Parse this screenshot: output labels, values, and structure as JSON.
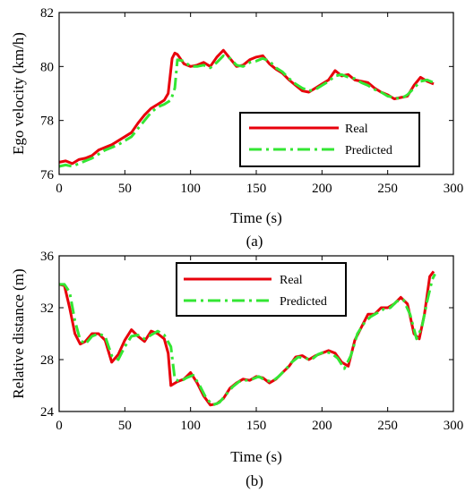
{
  "colors": {
    "real": "#e8000b",
    "predicted": "#33e633",
    "axis": "#000000",
    "background": "#ffffff"
  },
  "chart_data": [
    {
      "type": "line",
      "panel_label": "(a)",
      "xlabel": "Time (s)",
      "ylabel": "Ego velocity (km/h)",
      "xlim": [
        0,
        300
      ],
      "ylim": [
        76,
        82
      ],
      "xticks": [
        0,
        50,
        100,
        150,
        200,
        250,
        300
      ],
      "yticks": [
        76,
        78,
        80,
        82
      ],
      "grid": false,
      "legend_position": "bottom-right",
      "series": [
        {
          "name": "Real",
          "style": "solid",
          "points": [
            [
              0,
              76.45
            ],
            [
              5,
              76.5
            ],
            [
              10,
              76.4
            ],
            [
              15,
              76.55
            ],
            [
              20,
              76.6
            ],
            [
              25,
              76.7
            ],
            [
              30,
              76.9
            ],
            [
              35,
              77.0
            ],
            [
              40,
              77.1
            ],
            [
              45,
              77.25
            ],
            [
              50,
              77.4
            ],
            [
              55,
              77.55
            ],
            [
              60,
              77.9
            ],
            [
              65,
              78.2
            ],
            [
              70,
              78.45
            ],
            [
              75,
              78.6
            ],
            [
              80,
              78.75
            ],
            [
              83,
              79.0
            ],
            [
              86,
              80.3
            ],
            [
              88,
              80.5
            ],
            [
              90,
              80.45
            ],
            [
              95,
              80.1
            ],
            [
              100,
              80.0
            ],
            [
              105,
              80.05
            ],
            [
              110,
              80.15
            ],
            [
              115,
              80.0
            ],
            [
              120,
              80.35
            ],
            [
              125,
              80.6
            ],
            [
              130,
              80.3
            ],
            [
              135,
              80.0
            ],
            [
              140,
              80.05
            ],
            [
              145,
              80.25
            ],
            [
              150,
              80.35
            ],
            [
              155,
              80.4
            ],
            [
              160,
              80.1
            ],
            [
              165,
              79.9
            ],
            [
              170,
              79.75
            ],
            [
              175,
              79.5
            ],
            [
              180,
              79.3
            ],
            [
              185,
              79.1
            ],
            [
              190,
              79.05
            ],
            [
              195,
              79.2
            ],
            [
              200,
              79.35
            ],
            [
              205,
              79.5
            ],
            [
              210,
              79.85
            ],
            [
              215,
              79.65
            ],
            [
              220,
              79.7
            ],
            [
              225,
              79.5
            ],
            [
              230,
              79.45
            ],
            [
              235,
              79.4
            ],
            [
              240,
              79.2
            ],
            [
              245,
              79.05
            ],
            [
              250,
              78.95
            ],
            [
              255,
              78.8
            ],
            [
              260,
              78.85
            ],
            [
              265,
              78.9
            ],
            [
              270,
              79.3
            ],
            [
              275,
              79.6
            ],
            [
              280,
              79.45
            ],
            [
              285,
              79.35
            ]
          ]
        },
        {
          "name": "Predicted",
          "style": "dash-dot",
          "points": [
            [
              0,
              76.3
            ],
            [
              5,
              76.35
            ],
            [
              10,
              76.3
            ],
            [
              15,
              76.4
            ],
            [
              20,
              76.5
            ],
            [
              25,
              76.6
            ],
            [
              30,
              76.75
            ],
            [
              35,
              76.9
            ],
            [
              40,
              77.0
            ],
            [
              45,
              77.1
            ],
            [
              50,
              77.25
            ],
            [
              55,
              77.4
            ],
            [
              60,
              77.7
            ],
            [
              65,
              78.0
            ],
            [
              70,
              78.3
            ],
            [
              75,
              78.5
            ],
            [
              80,
              78.6
            ],
            [
              85,
              78.75
            ],
            [
              88,
              79.2
            ],
            [
              90,
              80.25
            ],
            [
              95,
              80.2
            ],
            [
              100,
              80.0
            ],
            [
              105,
              80.0
            ],
            [
              110,
              80.05
            ],
            [
              115,
              79.95
            ],
            [
              120,
              80.15
            ],
            [
              125,
              80.4
            ],
            [
              130,
              80.3
            ],
            [
              135,
              80.05
            ],
            [
              140,
              80.0
            ],
            [
              145,
              80.15
            ],
            [
              150,
              80.2
            ],
            [
              155,
              80.3
            ],
            [
              160,
              80.2
            ],
            [
              165,
              79.95
            ],
            [
              170,
              79.8
            ],
            [
              175,
              79.55
            ],
            [
              180,
              79.35
            ],
            [
              185,
              79.2
            ],
            [
              190,
              79.1
            ],
            [
              195,
              79.15
            ],
            [
              200,
              79.3
            ],
            [
              205,
              79.45
            ],
            [
              210,
              79.65
            ],
            [
              215,
              79.7
            ],
            [
              220,
              79.6
            ],
            [
              225,
              79.55
            ],
            [
              230,
              79.4
            ],
            [
              235,
              79.3
            ],
            [
              240,
              79.15
            ],
            [
              245,
              79.05
            ],
            [
              250,
              78.9
            ],
            [
              255,
              78.85
            ],
            [
              260,
              78.8
            ],
            [
              265,
              78.95
            ],
            [
              270,
              79.2
            ],
            [
              275,
              79.45
            ],
            [
              280,
              79.5
            ],
            [
              285,
              79.4
            ]
          ]
        }
      ]
    },
    {
      "type": "line",
      "panel_label": "(b)",
      "xlabel": "Time (s)",
      "ylabel": "Relative distance (m)",
      "xlim": [
        0,
        300
      ],
      "ylim": [
        24,
        36
      ],
      "xticks": [
        0,
        50,
        100,
        150,
        200,
        250,
        300
      ],
      "yticks": [
        24,
        28,
        32,
        36
      ],
      "grid": false,
      "legend_position": "top-center",
      "series": [
        {
          "name": "Real",
          "style": "solid",
          "points": [
            [
              0,
              33.8
            ],
            [
              4,
              33.7
            ],
            [
              8,
              32.0
            ],
            [
              12,
              30.0
            ],
            [
              16,
              29.2
            ],
            [
              20,
              29.4
            ],
            [
              25,
              30.0
            ],
            [
              30,
              30.0
            ],
            [
              35,
              29.5
            ],
            [
              40,
              27.8
            ],
            [
              45,
              28.4
            ],
            [
              50,
              29.5
            ],
            [
              55,
              30.3
            ],
            [
              60,
              29.8
            ],
            [
              65,
              29.4
            ],
            [
              70,
              30.2
            ],
            [
              75,
              30.0
            ],
            [
              80,
              29.6
            ],
            [
              83,
              28.5
            ],
            [
              85,
              26.0
            ],
            [
              90,
              26.3
            ],
            [
              95,
              26.5
            ],
            [
              100,
              27.0
            ],
            [
              105,
              26.2
            ],
            [
              110,
              25.2
            ],
            [
              115,
              24.5
            ],
            [
              120,
              24.6
            ],
            [
              125,
              25.0
            ],
            [
              130,
              25.8
            ],
            [
              135,
              26.2
            ],
            [
              140,
              26.5
            ],
            [
              145,
              26.4
            ],
            [
              150,
              26.7
            ],
            [
              155,
              26.6
            ],
            [
              160,
              26.2
            ],
            [
              165,
              26.5
            ],
            [
              170,
              27.0
            ],
            [
              175,
              27.5
            ],
            [
              180,
              28.2
            ],
            [
              185,
              28.3
            ],
            [
              190,
              28.0
            ],
            [
              195,
              28.3
            ],
            [
              200,
              28.5
            ],
            [
              205,
              28.7
            ],
            [
              210,
              28.5
            ],
            [
              215,
              27.8
            ],
            [
              220,
              27.5
            ],
            [
              225,
              29.5
            ],
            [
              230,
              30.5
            ],
            [
              235,
              31.5
            ],
            [
              240,
              31.5
            ],
            [
              245,
              32.0
            ],
            [
              250,
              32.0
            ],
            [
              255,
              32.3
            ],
            [
              260,
              32.8
            ],
            [
              265,
              32.3
            ],
            [
              270,
              30.0
            ],
            [
              274,
              29.6
            ],
            [
              278,
              31.5
            ],
            [
              282,
              34.4
            ],
            [
              285,
              34.8
            ]
          ]
        },
        {
          "name": "Predicted",
          "style": "dash-dot",
          "points": [
            [
              0,
              33.8
            ],
            [
              4,
              33.8
            ],
            [
              8,
              33.2
            ],
            [
              12,
              31.0
            ],
            [
              16,
              29.5
            ],
            [
              20,
              29.2
            ],
            [
              25,
              29.8
            ],
            [
              30,
              30.0
            ],
            [
              35,
              29.8
            ],
            [
              40,
              28.3
            ],
            [
              45,
              28.0
            ],
            [
              50,
              29.0
            ],
            [
              55,
              29.8
            ],
            [
              60,
              29.9
            ],
            [
              65,
              29.6
            ],
            [
              70,
              29.9
            ],
            [
              75,
              30.2
            ],
            [
              80,
              29.9
            ],
            [
              85,
              29.0
            ],
            [
              88,
              26.5
            ],
            [
              92,
              26.3
            ],
            [
              97,
              26.6
            ],
            [
              102,
              26.8
            ],
            [
              107,
              26.0
            ],
            [
              112,
              25.0
            ],
            [
              117,
              24.5
            ],
            [
              122,
              24.7
            ],
            [
              127,
              25.3
            ],
            [
              132,
              25.9
            ],
            [
              137,
              26.3
            ],
            [
              142,
              26.4
            ],
            [
              147,
              26.5
            ],
            [
              152,
              26.7
            ],
            [
              157,
              26.4
            ],
            [
              162,
              26.3
            ],
            [
              167,
              26.7
            ],
            [
              172,
              27.2
            ],
            [
              177,
              27.8
            ],
            [
              182,
              28.2
            ],
            [
              187,
              28.1
            ],
            [
              192,
              28.0
            ],
            [
              197,
              28.4
            ],
            [
              202,
              28.6
            ],
            [
              207,
              28.5
            ],
            [
              212,
              28.1
            ],
            [
              217,
              27.3
            ],
            [
              222,
              28.3
            ],
            [
              227,
              30.0
            ],
            [
              232,
              30.8
            ],
            [
              237,
              31.3
            ],
            [
              242,
              31.6
            ],
            [
              247,
              31.9
            ],
            [
              252,
              32.0
            ],
            [
              257,
              32.5
            ],
            [
              262,
              32.6
            ],
            [
              267,
              31.5
            ],
            [
              272,
              29.6
            ],
            [
              276,
              30.5
            ],
            [
              280,
              32.5
            ],
            [
              284,
              34.2
            ],
            [
              286,
              34.6
            ]
          ]
        }
      ]
    }
  ]
}
